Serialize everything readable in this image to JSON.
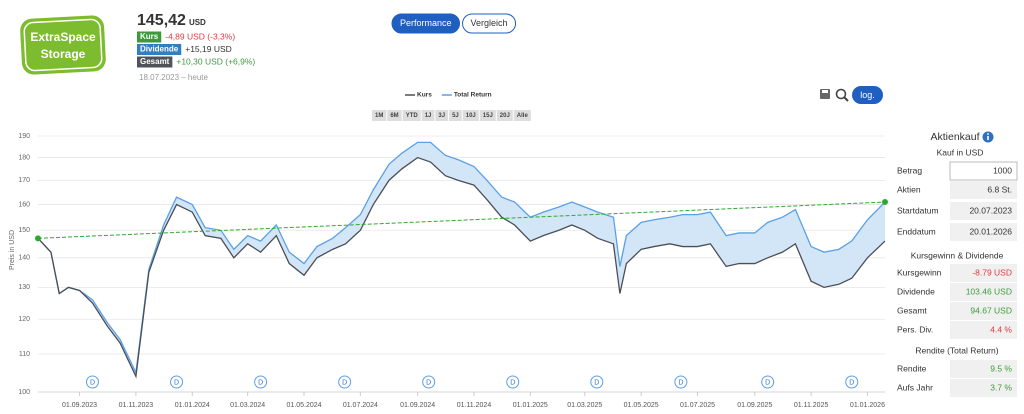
{
  "header": {
    "logo": [
      "ExtraSpace",
      "Storage"
    ],
    "price": "145,42",
    "currency": "USD",
    "rows": [
      {
        "label": "Kurs",
        "value": "-4,89 USD (-3,3%)",
        "badge": "#3c9a3c",
        "color": "#e0393e"
      },
      {
        "label": "Dividende",
        "value": "+15,19 USD",
        "badge": "#2f7fc4",
        "color": "#333333"
      },
      {
        "label": "Gesamt",
        "value": "+10,30 USD (+6,9%)",
        "badge": "#505458",
        "color": "#3c9a3c"
      }
    ],
    "period": "18.07.2023 – heute"
  },
  "tabs": [
    "Performance",
    "Vergleich"
  ],
  "ranges": [
    "1M",
    "6M",
    "YTD",
    "1J",
    "3J",
    "5J",
    "10J",
    "15J",
    "20J",
    "Alle"
  ],
  "chart_data": {
    "type": "line",
    "ylabel": "Preis in USD",
    "log": true,
    "grid": true,
    "log_label": "log.",
    "x": [
      "18.07.2023",
      "01.08.2023",
      "10.08.2023",
      "20.08.2023",
      "01.09.2023",
      "15.09.2023",
      "01.10.2023",
      "15.10.2023",
      "01.11.2023",
      "15.11.2023",
      "01.12.2023",
      "15.12.2023",
      "01.01.2024",
      "15.01.2024",
      "01.02.2024",
      "15.02.2024",
      "01.03.2024",
      "15.03.2024",
      "01.04.2024",
      "15.04.2024",
      "01.05.2024",
      "15.05.2024",
      "01.06.2024",
      "15.06.2024",
      "01.07.2024",
      "15.07.2024",
      "01.08.2024",
      "15.08.2024",
      "01.09.2024",
      "15.09.2024",
      "01.10.2024",
      "15.10.2024",
      "01.11.2024",
      "15.11.2024",
      "01.12.2024",
      "15.12.2024",
      "01.01.2025",
      "15.01.2025",
      "01.02.2025",
      "15.02.2025",
      "01.03.2025",
      "15.03.2025",
      "01.04.2025",
      "08.04.2025",
      "15.04.2025",
      "01.05.2025",
      "15.05.2025",
      "01.06.2025",
      "15.06.2025",
      "01.07.2025",
      "15.07.2025",
      "01.08.2025",
      "15.08.2025",
      "01.09.2025",
      "15.09.2025",
      "01.10.2025",
      "15.10.2025",
      "01.11.2025",
      "15.11.2025",
      "01.12.2025",
      "15.12.2025",
      "01.01.2026",
      "20.01.2026"
    ],
    "series": [
      {
        "name": "Kurs",
        "color": "#4a4f55",
        "values": [
          147,
          142,
          128,
          130,
          129,
          125,
          118,
          113,
          104,
          135,
          150,
          160,
          157,
          148,
          147,
          140,
          145,
          142,
          148,
          138,
          134,
          140,
          143,
          145,
          150,
          160,
          170,
          175,
          180,
          178,
          172,
          170,
          168,
          162,
          155,
          152,
          146,
          148,
          150,
          152,
          150,
          147,
          145,
          128,
          138,
          143,
          144,
          145,
          144,
          144,
          145,
          137,
          138,
          138,
          140,
          142,
          145,
          132,
          130,
          131,
          133,
          140,
          146
        ]
      },
      {
        "name": "Total Return",
        "color": "#5aa0e6",
        "values": [
          147,
          142,
          128,
          130,
          129,
          126,
          119,
          114,
          105,
          136,
          152,
          163,
          160,
          151,
          150,
          143,
          148,
          146,
          152,
          142,
          138,
          144,
          147,
          151,
          156,
          166,
          177,
          182,
          187,
          187,
          181,
          179,
          176,
          170,
          163,
          161,
          155,
          157,
          159,
          161,
          159,
          157,
          155,
          137,
          148,
          153,
          154,
          155,
          156,
          156,
          157,
          148,
          149,
          149,
          153,
          155,
          158,
          144,
          142,
          143,
          146,
          154,
          161
        ]
      }
    ],
    "area_color": "#d3e6f8",
    "trend": {
      "x": [
        "18.07.2023",
        "20.01.2026"
      ],
      "values": [
        147,
        161
      ],
      "color": "#2eaa2e"
    },
    "dividends": {
      "label": "D",
      "x": [
        "15.09.2023",
        "15.12.2023",
        "15.03.2024",
        "14.06.2024",
        "13.09.2024",
        "13.12.2024",
        "14.03.2025",
        "13.06.2025",
        "15.09.2025",
        "15.12.2025"
      ]
    },
    "xlim": [
      "18.07.2023",
      "20.01.2026"
    ],
    "xticks": [
      "01.09.2023",
      "01.11.2023",
      "01.01.2024",
      "01.03.2024",
      "01.05.2024",
      "01.07.2024",
      "01.09.2024",
      "01.11.2024",
      "01.01.2025",
      "01.03.2025",
      "01.05.2025",
      "01.07.2025",
      "01.09.2025",
      "01.11.2025",
      "01.01.2026"
    ],
    "ylim": [
      100,
      190
    ],
    "yticks": [
      100,
      110,
      120,
      130,
      140,
      150,
      160,
      170,
      180,
      190
    ]
  },
  "sidebar": {
    "title": "Aktienkauf",
    "subtitle": "Kauf in USD",
    "rows": [
      {
        "label": "Betrag",
        "value": "1000"
      },
      {
        "label": "Aktien",
        "value": "6.8 St."
      },
      {
        "label": "Startdatum",
        "value": "20.07.2023"
      },
      {
        "label": "Enddatum",
        "value": "20.01.2026"
      }
    ],
    "sections": [
      {
        "title": "Kursgewinn & Dividende",
        "rows": [
          {
            "label": "Kursgewinn",
            "value": "-8.79 USD",
            "color": "#e0393e"
          },
          {
            "label": "Dividende",
            "value": "103.46 USD",
            "color": "#3c9a3c"
          },
          {
            "label": "Gesamt",
            "value": "94.67 USD",
            "color": "#3c9a3c"
          },
          {
            "label": "Pers. Div.",
            "value": "4.4 %",
            "color": "#e0393e"
          }
        ]
      },
      {
        "title": "Rendite (Total Return)",
        "rows": [
          {
            "label": "Rendite",
            "value": "9.5 %",
            "color": "#3c9a3c"
          },
          {
            "label": "Aufs Jahr",
            "value": "3.7 %",
            "color": "#3c9a3c"
          }
        ]
      }
    ]
  }
}
